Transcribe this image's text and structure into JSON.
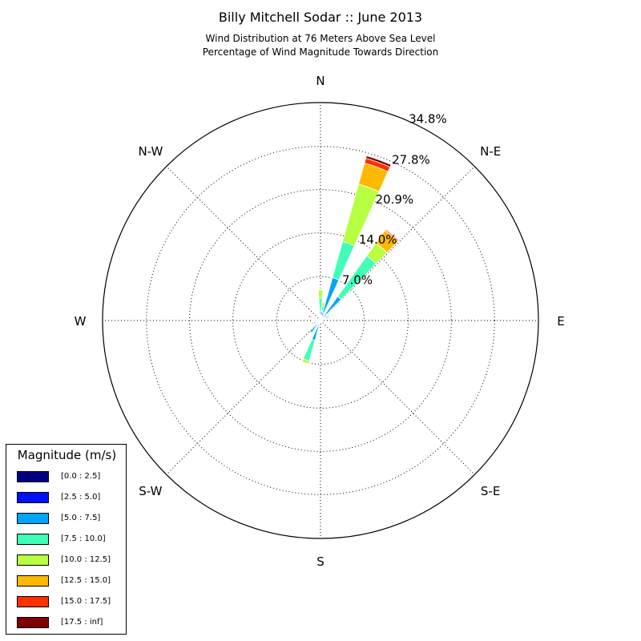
{
  "title": "Billy Mitchell Sodar :: June 2013",
  "subtitle_line1": "Wind Distribution at 76 Meters Above Sea Level",
  "subtitle_line2": "Percentage of Wind Magnitude Towards Direction",
  "legend": {
    "title": "Magnitude (m/s)",
    "items": [
      {
        "label": "[0.0 : 2.5]",
        "color": "#00007f"
      },
      {
        "label": "[2.5 : 5.0]",
        "color": "#0010ff"
      },
      {
        "label": "[5.0 : 7.5]",
        "color": "#00a4ff"
      },
      {
        "label": "[7.5 : 10.0]",
        "color": "#40ffb7"
      },
      {
        "label": "[10.0 : 12.5]",
        "color": "#b7ff40"
      },
      {
        "label": "[12.5 : 15.0]",
        "color": "#ffb900"
      },
      {
        "label": "[15.0 : 17.5]",
        "color": "#ff3000"
      },
      {
        "label": "[17.5 : inf]",
        "color": "#7f0000"
      }
    ]
  },
  "chart_data": {
    "type": "windrose",
    "title": "Billy Mitchell Sodar :: June 2013",
    "subtitle": "Wind Distribution at 76 Meters Above Sea Level / Percentage of Wind Magnitude Towards Direction",
    "direction_labels": [
      {
        "label": "N",
        "angle": 0
      },
      {
        "label": "N-E",
        "angle": 45
      },
      {
        "label": "E",
        "angle": 90
      },
      {
        "label": "S-E",
        "angle": 135
      },
      {
        "label": "S",
        "angle": 180
      },
      {
        "label": "S-W",
        "angle": 225
      },
      {
        "label": "W",
        "angle": 270
      },
      {
        "label": "N-W",
        "angle": 315
      }
    ],
    "radial_ticks": [
      7.0,
      14.0,
      20.9,
      27.8,
      34.8
    ],
    "radial_tick_labels": [
      "7.0%",
      "14.0%",
      "20.9%",
      "27.8%",
      "34.8%"
    ],
    "rmax": 34.8,
    "bin_width_deg": 10,
    "bins": [
      "[0.0 : 2.5]",
      "[2.5 : 5.0]",
      "[5.0 : 7.5]",
      "[7.5 : 10.0]",
      "[10.0 : 12.5]",
      "[12.5 : 15.0]",
      "[15.0 : 17.5]",
      "[17.5 : inf]"
    ],
    "sectors": [
      {
        "direction": 0,
        "values": [
          0.4,
          0.5,
          0.5,
          2.2,
          1.3,
          0.1,
          0.1,
          0.05
        ]
      },
      {
        "direction": 10,
        "values": [
          0.4,
          0.5,
          0.6,
          0.8,
          0.6,
          0.1,
          0,
          0
        ]
      },
      {
        "direction": 20,
        "values": [
          0.5,
          0.8,
          5.8,
          6.0,
          9.5,
          3.5,
          0.8,
          0.4
        ]
      },
      {
        "direction": 40,
        "values": [
          0.5,
          0.7,
          3.5,
          8.0,
          2.5,
          2.5,
          0.2,
          0
        ]
      },
      {
        "direction": 60,
        "values": [
          0.3,
          0.4,
          0.5,
          0.4,
          0,
          0,
          0,
          0
        ]
      },
      {
        "direction": 70,
        "values": [
          0.2,
          0.2,
          0.4,
          0.6,
          0,
          0,
          0,
          0
        ]
      },
      {
        "direction": 140,
        "values": [
          0.2,
          0.1,
          0,
          0,
          0.2,
          0,
          0,
          0
        ]
      },
      {
        "direction": 200,
        "values": [
          0.5,
          0.5,
          2.3,
          3.4,
          0.5,
          0,
          0,
          0
        ]
      },
      {
        "direction": 220,
        "values": [
          0.4,
          0.7,
          1.3,
          0,
          0,
          0,
          0,
          0
        ]
      },
      {
        "direction": 250,
        "values": [
          0.3,
          0.3,
          0.6,
          0.3,
          0,
          0,
          0,
          0
        ]
      },
      {
        "direction": 270,
        "values": [
          0.3,
          0.3,
          0.3,
          0.2,
          0,
          0,
          0,
          0
        ]
      },
      {
        "direction": 290,
        "values": [
          0.3,
          0.3,
          0.3,
          0.4,
          0.2,
          0.2,
          0.3,
          0.1
        ]
      },
      {
        "direction": 330,
        "values": [
          0.2,
          0.2,
          0.3,
          0.3,
          0,
          0,
          0,
          0
        ]
      }
    ],
    "grid": true,
    "legend_placement": "bottom-left"
  }
}
